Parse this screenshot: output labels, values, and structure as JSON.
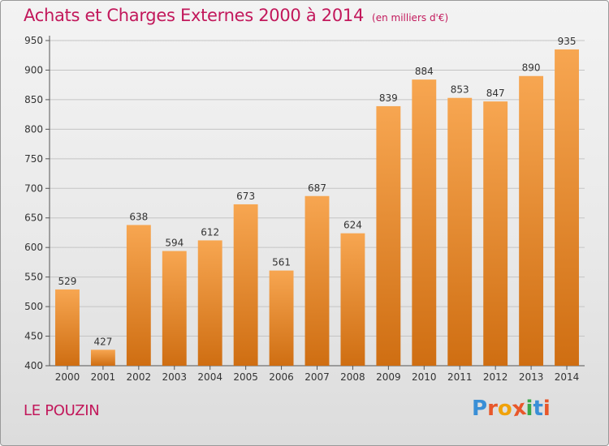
{
  "header": {
    "title": "Achats et Charges Externes 2000 à 2014",
    "subtitle": "(en milliers d'€)"
  },
  "footer": {
    "town": "LE POUZIN",
    "logo_letters": [
      "P",
      "r",
      "o",
      "x",
      "i",
      "t",
      "i"
    ],
    "logo_colors": [
      "#3a8fd6",
      "#e8572a",
      "#f0a20a",
      "#e8572a",
      "#3aa84a",
      "#3a8fd6",
      "#e8572a"
    ]
  },
  "chart_data": {
    "type": "bar",
    "categories": [
      "2000",
      "2001",
      "2002",
      "2003",
      "2004",
      "2005",
      "2006",
      "2007",
      "2008",
      "2009",
      "2010",
      "2011",
      "2012",
      "2013",
      "2014"
    ],
    "values": [
      529,
      427,
      638,
      594,
      612,
      673,
      561,
      687,
      624,
      839,
      884,
      853,
      847,
      890,
      935
    ],
    "yticks": [
      400,
      450,
      500,
      550,
      600,
      650,
      700,
      750,
      800,
      850,
      900,
      950
    ],
    "ylim": [
      400,
      950
    ],
    "grid": true,
    "bar_color_top": "#f7a651",
    "bar_color_bottom": "#cf6e12"
  }
}
